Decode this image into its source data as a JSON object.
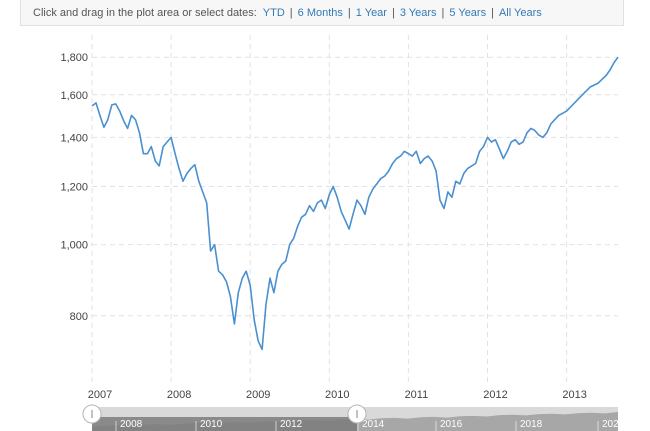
{
  "date_selector": {
    "prompt": "Click and drag in the plot area or select dates:",
    "options": [
      "YTD",
      "6 Months",
      "1 Year",
      "3 Years",
      "5 Years",
      "All Years"
    ]
  },
  "colors": {
    "line": "#4a90d0",
    "grid": "#e2e2e2",
    "navigator_fill": "#a7a7a7",
    "navigator_selected": "#7b7b7b",
    "navigator_track": "#d9d9d9"
  },
  "chart_data": {
    "type": "line",
    "title": "",
    "xlabel": "",
    "ylabel": "",
    "y_scale": "log",
    "ylim": [
      650,
      1900
    ],
    "yticks": [
      800,
      1000,
      1200,
      1400,
      1600,
      1800
    ],
    "ytick_labels": [
      "800",
      "1,000",
      "1,200",
      "1,400",
      "1,600",
      "1,800"
    ],
    "xlim": [
      2007.0,
      2013.65
    ],
    "xticks": [
      2007,
      2008,
      2009,
      2010,
      2011,
      2012,
      2013
    ],
    "xtick_labels": [
      "2007",
      "2008",
      "2009",
      "2010",
      "2011",
      "2012",
      "2013"
    ],
    "grid": true,
    "series": [
      {
        "x": [
          2007.0,
          2007.05,
          2007.1,
          2007.15,
          2007.2,
          2007.25,
          2007.3,
          2007.35,
          2007.4,
          2007.45,
          2007.5,
          2007.55,
          2007.6,
          2007.65,
          2007.7,
          2007.75,
          2007.8,
          2007.85,
          2007.9,
          2007.95,
          2008.0,
          2008.05,
          2008.1,
          2008.15,
          2008.2,
          2008.25,
          2008.3,
          2008.35,
          2008.4,
          2008.45,
          2008.5,
          2008.55,
          2008.6,
          2008.65,
          2008.7,
          2008.75,
          2008.8,
          2008.85,
          2008.9,
          2008.95,
          2009.0,
          2009.05,
          2009.1,
          2009.15,
          2009.2,
          2009.25,
          2009.3,
          2009.35,
          2009.4,
          2009.45,
          2009.5,
          2009.55,
          2009.6,
          2009.65,
          2009.7,
          2009.75,
          2009.8,
          2009.85,
          2009.9,
          2009.95,
          2010.0,
          2010.05,
          2010.1,
          2010.15,
          2010.2,
          2010.25,
          2010.3,
          2010.35,
          2010.4,
          2010.45,
          2010.5,
          2010.55,
          2010.6,
          2010.65,
          2010.7,
          2010.75,
          2010.8,
          2010.85,
          2010.9,
          2010.95,
          2011.0,
          2011.05,
          2011.1,
          2011.15,
          2011.2,
          2011.25,
          2011.3,
          2011.35,
          2011.4,
          2011.45,
          2011.5,
          2011.55,
          2011.6,
          2011.65,
          2011.7,
          2011.75,
          2011.8,
          2011.85,
          2011.9,
          2011.95,
          2012.0,
          2012.05,
          2012.1,
          2012.15,
          2012.2,
          2012.25,
          2012.3,
          2012.35,
          2012.4,
          2012.45,
          2012.5,
          2012.55,
          2012.6,
          2012.65,
          2012.7,
          2012.75,
          2012.8,
          2012.85,
          2012.9,
          2012.95,
          2013.0,
          2013.05,
          2013.1,
          2013.15,
          2013.2,
          2013.25,
          2013.3,
          2013.35,
          2013.4,
          2013.45,
          2013.5,
          2013.55,
          2013.6,
          2013.65
        ],
        "values": [
          1545,
          1560,
          1500,
          1445,
          1480,
          1550,
          1555,
          1520,
          1475,
          1440,
          1500,
          1480,
          1420,
          1330,
          1330,
          1360,
          1300,
          1280,
          1360,
          1380,
          1400,
          1330,
          1270,
          1220,
          1250,
          1270,
          1285,
          1220,
          1180,
          1140,
          980,
          1000,
          920,
          910,
          890,
          850,
          780,
          860,
          900,
          920,
          880,
          790,
          740,
          720,
          830,
          900,
          860,
          920,
          940,
          950,
          1000,
          1020,
          1060,
          1090,
          1100,
          1130,
          1110,
          1140,
          1150,
          1120,
          1170,
          1200,
          1160,
          1110,
          1080,
          1050,
          1100,
          1150,
          1130,
          1100,
          1160,
          1190,
          1210,
          1230,
          1240,
          1260,
          1290,
          1310,
          1320,
          1340,
          1330,
          1320,
          1340,
          1290,
          1310,
          1320,
          1300,
          1260,
          1150,
          1120,
          1180,
          1160,
          1220,
          1210,
          1250,
          1270,
          1280,
          1290,
          1340,
          1360,
          1400,
          1380,
          1390,
          1350,
          1310,
          1340,
          1380,
          1390,
          1370,
          1380,
          1420,
          1440,
          1430,
          1410,
          1400,
          1420,
          1460,
          1480,
          1500,
          1510,
          1520,
          1540,
          1560,
          1580,
          1600,
          1620,
          1640,
          1650,
          1660,
          1680,
          1700,
          1730,
          1770,
          1800
        ]
      }
    ],
    "navigator": {
      "year_labels": [
        "2008",
        "2010",
        "2012",
        "2014",
        "2016",
        "2018",
        "202"
      ]
    }
  }
}
